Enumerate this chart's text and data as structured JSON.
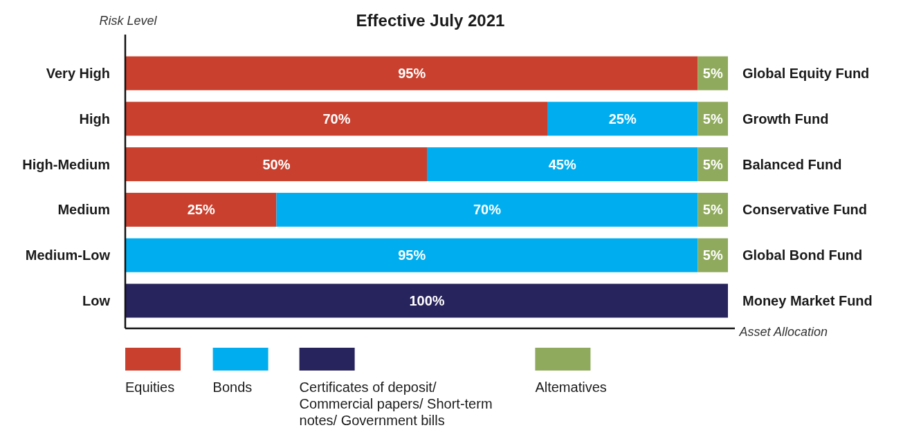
{
  "chart_data": {
    "type": "bar",
    "orientation": "horizontal",
    "stacked": true,
    "title": "Effective July 2021",
    "ylabel": "Risk Level",
    "xlabel": "Asset Allocation",
    "categories": [
      "Very High",
      "High",
      "High-Medium",
      "Medium",
      "Medium-Low",
      "Low"
    ],
    "series": [
      {
        "name": "Equities",
        "color": "#c9402e",
        "values": [
          95,
          70,
          50,
          25,
          null,
          null
        ],
        "value_labels": [
          "95%",
          "70%",
          "50%",
          "25%",
          null,
          null
        ]
      },
      {
        "name": "Bonds",
        "color": "#00aeef",
        "values": [
          null,
          25,
          45,
          70,
          95,
          null
        ],
        "value_labels": [
          null,
          "25%",
          "45%",
          "70%",
          "95%",
          null
        ]
      },
      {
        "name": "Certificates of deposit/ Commercial papers/ Short-term notes/ Government bills",
        "color": "#27235c",
        "values": [
          null,
          null,
          null,
          null,
          null,
          100
        ],
        "value_labels": [
          null,
          null,
          null,
          null,
          null,
          "100%"
        ]
      },
      {
        "name": "Altematives",
        "color": "#8faa5c",
        "values": [
          5,
          5,
          5,
          5,
          5,
          null
        ],
        "value_labels": [
          "5%",
          "5%",
          "5%",
          "5%",
          "5%",
          null
        ]
      }
    ],
    "annotations": [
      "Global Equity Fund",
      "Growth Fund",
      "Balanced Fund",
      "Conservative Fund",
      "Global Bond Fund",
      "Money Market Fund"
    ],
    "legend": "bottom"
  }
}
